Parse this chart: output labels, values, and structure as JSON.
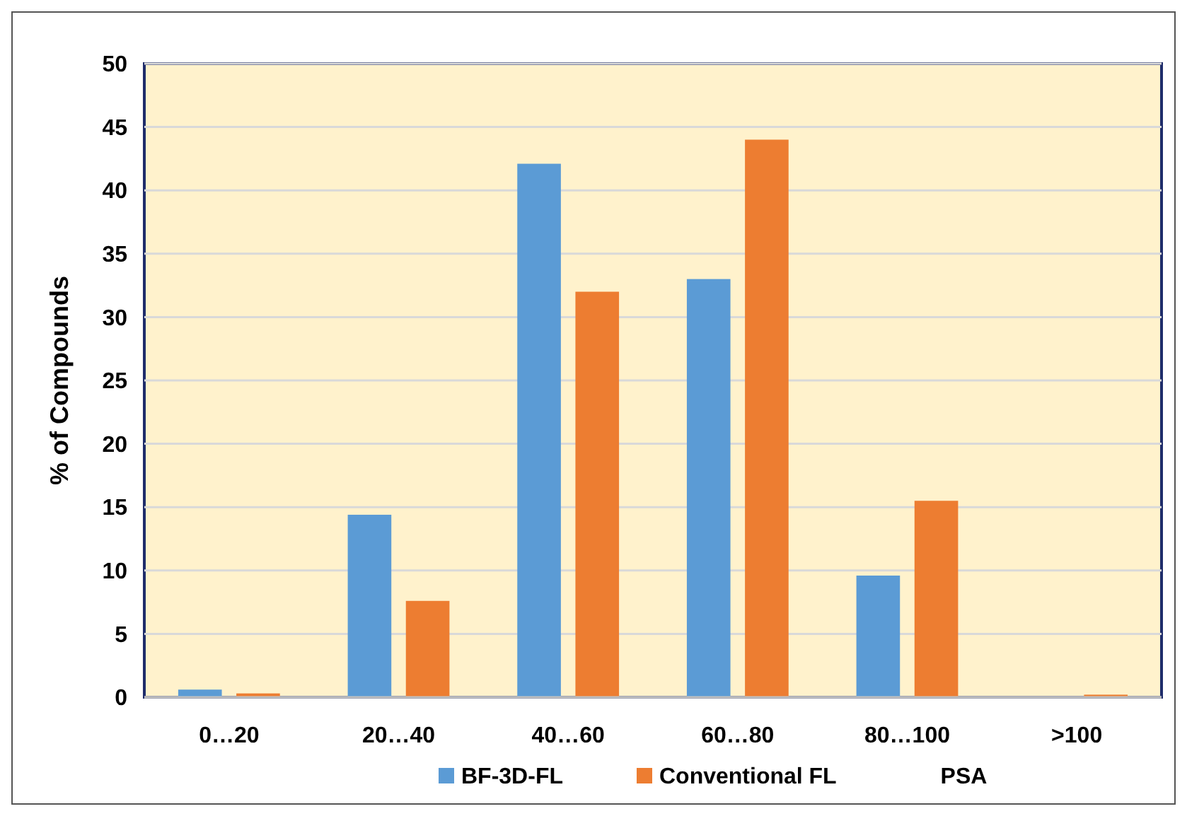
{
  "chart_data": {
    "type": "bar",
    "xlabel": "PSA",
    "ylabel": "% of Compounds",
    "categories": [
      "0…20",
      "20…40",
      "40…60",
      "60…80",
      "80…100",
      ">100"
    ],
    "series": [
      {
        "name": "BF-3D-FL",
        "color": "#5b9bd5",
        "values": [
          0.6,
          14.4,
          42.1,
          33.0,
          9.6,
          0
        ]
      },
      {
        "name": "Conventional FL",
        "color": "#ed7d31",
        "values": [
          0.3,
          7.6,
          32.0,
          44.0,
          15.5,
          0.2
        ]
      }
    ],
    "ylim": [
      0,
      50
    ],
    "yticks": [
      0,
      5,
      10,
      15,
      20,
      25,
      30,
      35,
      40,
      45,
      50
    ],
    "grid": "y",
    "legend": "bottom"
  }
}
